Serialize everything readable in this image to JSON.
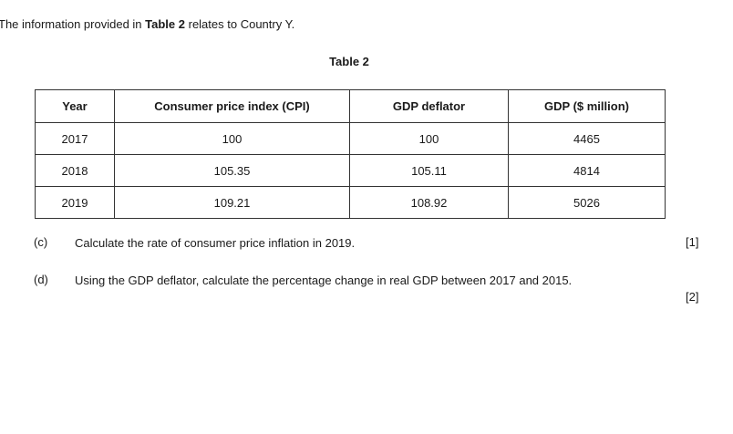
{
  "intro": {
    "before": "The information provided in ",
    "bold": "Table 2",
    "after": " relates to Country Y."
  },
  "table": {
    "title": "Table 2",
    "headers": [
      "Year",
      "Consumer price index (CPI)",
      "GDP deflator",
      "GDP ($ million)"
    ],
    "rows": [
      [
        "2017",
        "100",
        "100",
        "4465"
      ],
      [
        "2018",
        "105.35",
        "105.11",
        "4814"
      ],
      [
        "2019",
        "109.21",
        "108.92",
        "5026"
      ]
    ]
  },
  "questions": [
    {
      "label": "(c)",
      "text": "Calculate the rate of consumer price inflation in 2019.",
      "marks": "[1]"
    },
    {
      "label": "(d)",
      "text": "Using the GDP deflator, calculate the percentage change in real GDP between 2017 and 2015.",
      "marks": "[2]"
    }
  ]
}
